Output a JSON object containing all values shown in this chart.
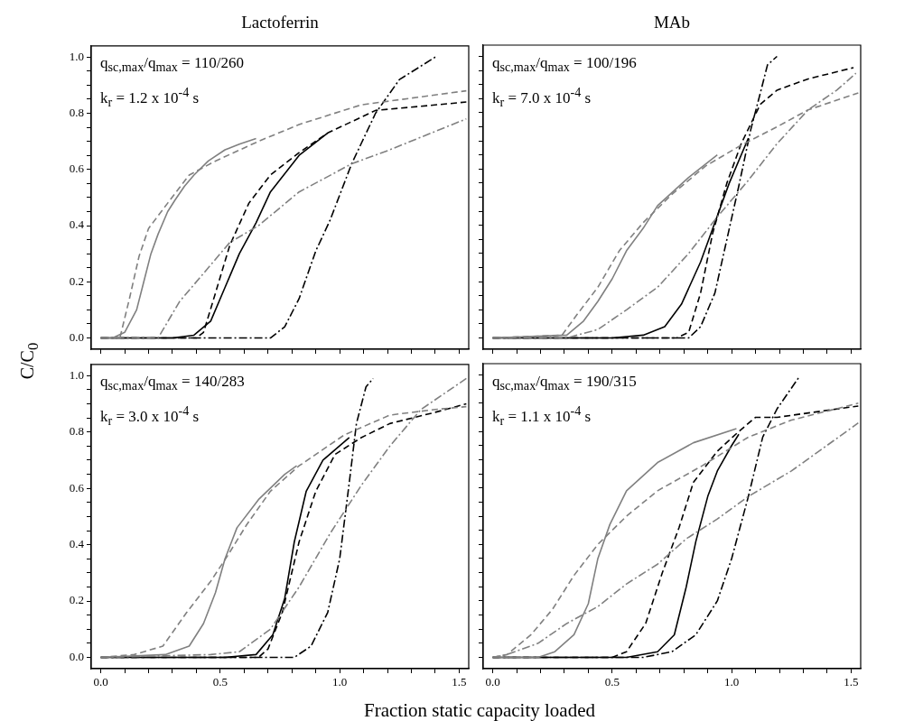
{
  "chart_data": [
    {
      "type": "line",
      "title": "Lactoferrin",
      "ylabel": "C/C$_{0}$",
      "annotations": [
        "q$_{sc,max}$/q$_{max}$ = 110/260",
        "k$_{r}$ = 1.2 x 10$^{-4}$ s"
      ],
      "xlim": [
        -0.04,
        1.54
      ],
      "ylim": [
        -0.04,
        1.04
      ],
      "tick_labels": "y",
      "xticks": [
        {
          "value": 0,
          "label": null
        },
        {
          "value": 0.1,
          "label": null
        },
        {
          "value": 0.2,
          "label": null
        },
        {
          "value": 0.3,
          "label": null
        },
        {
          "value": 0.4,
          "label": null
        },
        {
          "value": 0.5,
          "label": null
        },
        {
          "value": 0.6,
          "label": null
        },
        {
          "value": 0.7,
          "label": null
        },
        {
          "value": 0.8,
          "label": null
        },
        {
          "value": 0.9,
          "label": null
        },
        {
          "value": 1,
          "label": null
        },
        {
          "value": 1.1,
          "label": null
        },
        {
          "value": 1.2,
          "label": null
        },
        {
          "value": 1.3,
          "label": null
        },
        {
          "value": 1.4,
          "label": null
        },
        {
          "value": 1.5,
          "label": null
        }
      ],
      "yticks": [
        {
          "value": 0,
          "label": "0.0"
        },
        {
          "value": 0.05,
          "label": null
        },
        {
          "value": 0.1,
          "label": null
        },
        {
          "value": 0.15,
          "label": null
        },
        {
          "value": 0.2,
          "label": "0.2"
        },
        {
          "value": 0.25,
          "label": null
        },
        {
          "value": 0.3,
          "label": null
        },
        {
          "value": 0.35,
          "label": null
        },
        {
          "value": 0.4,
          "label": "0.4"
        },
        {
          "value": 0.45,
          "label": null
        },
        {
          "value": 0.5,
          "label": null
        },
        {
          "value": 0.55,
          "label": null
        },
        {
          "value": 0.6,
          "label": "0.6"
        },
        {
          "value": 0.65,
          "label": null
        },
        {
          "value": 0.7,
          "label": null
        },
        {
          "value": 0.75,
          "label": null
        },
        {
          "value": 0.8,
          "label": "0.8"
        },
        {
          "value": 0.85,
          "label": null
        },
        {
          "value": 0.9,
          "label": null
        },
        {
          "value": 0.95,
          "label": null
        },
        {
          "value": 1,
          "label": "1.0"
        }
      ],
      "series": [
        {
          "color": "#808080",
          "line_style": "solid",
          "x": [
            0,
            0.05,
            0.1,
            0.15,
            0.18,
            0.21,
            0.24,
            0.28,
            0.31,
            0.35,
            0.39,
            0.45,
            0.52,
            0.58,
            0.65
          ],
          "values": [
            0,
            0,
            0.02,
            0.1,
            0.2,
            0.3,
            0.37,
            0.45,
            0.49,
            0.54,
            0.58,
            0.63,
            0.67,
            0.69,
            0.71
          ]
        },
        {
          "color": "#808080",
          "line_style": "dashed",
          "x": [
            0,
            0.08,
            0.12,
            0.16,
            0.2,
            0.28,
            0.37,
            0.48,
            0.66,
            0.83,
            1.09,
            1.53
          ],
          "values": [
            0,
            0,
            0.14,
            0.29,
            0.39,
            0.48,
            0.58,
            0.63,
            0.7,
            0.76,
            0.83,
            0.88
          ]
        },
        {
          "color": "#808080",
          "line_style": "dashdot",
          "x": [
            0,
            0.24,
            0.33,
            0.43,
            0.54,
            0.66,
            0.83,
            1.05,
            1.21,
            1.53
          ],
          "values": [
            0,
            0,
            0.13,
            0.23,
            0.34,
            0.4,
            0.52,
            0.62,
            0.67,
            0.78
          ]
        },
        {
          "color": "#000000",
          "line_style": "solid",
          "x": [
            0,
            0.3,
            0.39,
            0.46,
            0.52,
            0.58,
            0.65,
            0.71,
            0.83,
            0.95
          ],
          "values": [
            0,
            0,
            0.01,
            0.06,
            0.18,
            0.3,
            0.41,
            0.52,
            0.65,
            0.73
          ]
        },
        {
          "color": "#000000",
          "line_style": "dashed",
          "x": [
            0,
            0.4,
            0.43,
            0.48,
            0.54,
            0.62,
            0.71,
            0.83,
            0.95,
            1.15,
            1.53
          ],
          "values": [
            0,
            0,
            0.02,
            0.16,
            0.33,
            0.48,
            0.58,
            0.66,
            0.73,
            0.81,
            0.84
          ]
        },
        {
          "color": "#000000",
          "line_style": "dashdot",
          "x": [
            0,
            0.71,
            0.77,
            0.83,
            0.9,
            0.96,
            1.05,
            1.15,
            1.25,
            1.4
          ],
          "values": [
            0,
            0,
            0.04,
            0.14,
            0.31,
            0.42,
            0.62,
            0.8,
            0.92,
            1
          ]
        }
      ]
    },
    {
      "type": "line",
      "title": "MAb",
      "annotations": [
        "q$_{sc,max}$/q$_{max}$ = 100/196",
        "k$_{r}$ = 7.0 x 10$^{-4}$ s"
      ],
      "xlim": [
        -0.04,
        1.54
      ],
      "ylim": [
        -0.04,
        1.04
      ],
      "tick_labels": false,
      "xticks": [
        {
          "value": 0,
          "label": null
        },
        {
          "value": 0.1,
          "label": null
        },
        {
          "value": 0.2,
          "label": null
        },
        {
          "value": 0.3,
          "label": null
        },
        {
          "value": 0.4,
          "label": null
        },
        {
          "value": 0.5,
          "label": null
        },
        {
          "value": 0.6,
          "label": null
        },
        {
          "value": 0.7,
          "label": null
        },
        {
          "value": 0.8,
          "label": null
        },
        {
          "value": 0.9,
          "label": null
        },
        {
          "value": 1,
          "label": null
        },
        {
          "value": 1.1,
          "label": null
        },
        {
          "value": 1.2,
          "label": null
        },
        {
          "value": 1.3,
          "label": null
        },
        {
          "value": 1.4,
          "label": null
        },
        {
          "value": 1.5,
          "label": null
        }
      ],
      "yticks": [
        {
          "value": 0,
          "label": null
        },
        {
          "value": 0.05,
          "label": null
        },
        {
          "value": 0.1,
          "label": null
        },
        {
          "value": 0.15,
          "label": null
        },
        {
          "value": 0.2,
          "label": null
        },
        {
          "value": 0.25,
          "label": null
        },
        {
          "value": 0.3,
          "label": null
        },
        {
          "value": 0.35,
          "label": null
        },
        {
          "value": 0.4,
          "label": null
        },
        {
          "value": 0.45,
          "label": null
        },
        {
          "value": 0.5,
          "label": null
        },
        {
          "value": 0.55,
          "label": null
        },
        {
          "value": 0.6,
          "label": null
        },
        {
          "value": 0.65,
          "label": null
        },
        {
          "value": 0.7,
          "label": null
        },
        {
          "value": 0.75,
          "label": null
        },
        {
          "value": 0.8,
          "label": null
        },
        {
          "value": 0.85,
          "label": null
        },
        {
          "value": 0.9,
          "label": null
        },
        {
          "value": 0.95,
          "label": null
        },
        {
          "value": 1,
          "label": null
        }
      ],
      "series": [
        {
          "color": "#808080",
          "line_style": "solid",
          "x": [
            0,
            0.31,
            0.38,
            0.44,
            0.5,
            0.56,
            0.63,
            0.69,
            0.82,
            0.94
          ],
          "values": [
            0,
            0.01,
            0.06,
            0.13,
            0.21,
            0.31,
            0.39,
            0.47,
            0.57,
            0.65
          ]
        },
        {
          "color": "#808080",
          "line_style": "dashed",
          "x": [
            0,
            0.29,
            0.35,
            0.44,
            0.53,
            0.63,
            0.75,
            0.89,
            1.03,
            1.19,
            1.32,
            1.53
          ],
          "values": [
            0,
            0.01,
            0.08,
            0.18,
            0.31,
            0.41,
            0.51,
            0.61,
            0.68,
            0.75,
            0.81,
            0.87
          ]
        },
        {
          "color": "#808080",
          "line_style": "dashdot",
          "x": [
            0,
            0.31,
            0.44,
            0.56,
            0.69,
            0.82,
            0.94,
            1.07,
            1.19,
            1.32,
            1.44,
            1.52
          ],
          "values": [
            0,
            0,
            0.03,
            0.1,
            0.18,
            0.3,
            0.43,
            0.56,
            0.69,
            0.81,
            0.88,
            0.94
          ]
        },
        {
          "color": "#000000",
          "line_style": "solid",
          "x": [
            0,
            0.5,
            0.63,
            0.72,
            0.79,
            0.87,
            0.93,
            0.99,
            1.07
          ],
          "values": [
            0,
            0,
            0.01,
            0.04,
            0.12,
            0.27,
            0.41,
            0.55,
            0.71
          ]
        },
        {
          "color": "#000000",
          "line_style": "dashed",
          "x": [
            0,
            0.77,
            0.82,
            0.87,
            0.92,
            0.98,
            1.04,
            1.12,
            1.19,
            1.32,
            1.51
          ],
          "values": [
            0,
            0,
            0.02,
            0.16,
            0.37,
            0.55,
            0.69,
            0.83,
            0.88,
            0.92,
            0.96
          ]
        },
        {
          "color": "#000000",
          "line_style": "dashdot",
          "x": [
            0,
            0.82,
            0.87,
            0.93,
            0.98,
            1.03,
            1.08,
            1.12,
            1.15,
            1.19
          ],
          "values": [
            0,
            0,
            0.04,
            0.16,
            0.35,
            0.54,
            0.74,
            0.87,
            0.97,
            1
          ]
        }
      ]
    },
    {
      "type": "line",
      "xlabel": "Fraction static capacity loaded",
      "annotations": [
        "q$_{sc,max}$/q$_{max}$ = 140/283",
        "k$_{r}$ = 3.0 x 10$^{-4}$ s"
      ],
      "xlim": [
        -0.04,
        1.54
      ],
      "ylim": [
        -0.04,
        1.04
      ],
      "xticks": [
        {
          "value": 0,
          "label": "0.0"
        },
        {
          "value": 0.1,
          "label": null
        },
        {
          "value": 0.2,
          "label": null
        },
        {
          "value": 0.3,
          "label": null
        },
        {
          "value": 0.4,
          "label": null
        },
        {
          "value": 0.5,
          "label": "0.5"
        },
        {
          "value": 0.6,
          "label": null
        },
        {
          "value": 0.7,
          "label": null
        },
        {
          "value": 0.8,
          "label": null
        },
        {
          "value": 0.9,
          "label": null
        },
        {
          "value": 1,
          "label": "1.0"
        },
        {
          "value": 1.1,
          "label": null
        },
        {
          "value": 1.2,
          "label": null
        },
        {
          "value": 1.3,
          "label": null
        },
        {
          "value": 1.4,
          "label": null
        },
        {
          "value": 1.5,
          "label": "1.5"
        }
      ],
      "yticks": [
        {
          "value": 0,
          "label": "0.0"
        },
        {
          "value": 0.05,
          "label": null
        },
        {
          "value": 0.1,
          "label": null
        },
        {
          "value": 0.15,
          "label": null
        },
        {
          "value": 0.2,
          "label": "0.2"
        },
        {
          "value": 0.25,
          "label": null
        },
        {
          "value": 0.3,
          "label": null
        },
        {
          "value": 0.35,
          "label": null
        },
        {
          "value": 0.4,
          "label": "0.4"
        },
        {
          "value": 0.45,
          "label": null
        },
        {
          "value": 0.5,
          "label": null
        },
        {
          "value": 0.55,
          "label": null
        },
        {
          "value": 0.6,
          "label": "0.6"
        },
        {
          "value": 0.65,
          "label": null
        },
        {
          "value": 0.7,
          "label": null
        },
        {
          "value": 0.75,
          "label": null
        },
        {
          "value": 0.8,
          "label": "0.8"
        },
        {
          "value": 0.85,
          "label": null
        },
        {
          "value": 0.9,
          "label": null
        },
        {
          "value": 0.95,
          "label": null
        },
        {
          "value": 1,
          "label": "1.0"
        }
      ],
      "series": [
        {
          "color": "#808080",
          "line_style": "solid",
          "x": [
            0,
            0.27,
            0.37,
            0.43,
            0.48,
            0.52,
            0.57,
            0.66,
            0.77,
            0.82
          ],
          "values": [
            0,
            0.01,
            0.04,
            0.12,
            0.23,
            0.35,
            0.46,
            0.56,
            0.65,
            0.68
          ]
        },
        {
          "color": "#808080",
          "line_style": "dashed",
          "x": [
            0,
            0.14,
            0.26,
            0.36,
            0.46,
            0.53,
            0.61,
            0.71,
            0.83,
            1.02,
            1.21,
            1.4,
            1.53
          ],
          "values": [
            0,
            0.01,
            0.04,
            0.16,
            0.27,
            0.36,
            0.47,
            0.59,
            0.68,
            0.79,
            0.86,
            0.88,
            0.89
          ]
        },
        {
          "color": "#808080",
          "line_style": "dashdot",
          "x": [
            0,
            0.46,
            0.58,
            0.71,
            0.83,
            0.96,
            1.09,
            1.21,
            1.34,
            1.53
          ],
          "values": [
            0,
            0.01,
            0.02,
            0.1,
            0.25,
            0.44,
            0.61,
            0.75,
            0.88,
            0.99
          ]
        },
        {
          "color": "#000000",
          "line_style": "solid",
          "x": [
            0,
            0.52,
            0.65,
            0.72,
            0.77,
            0.81,
            0.86,
            0.93,
            1.04
          ],
          "values": [
            0,
            0,
            0.01,
            0.08,
            0.21,
            0.41,
            0.59,
            0.7,
            0.78
          ]
        },
        {
          "color": "#000000",
          "line_style": "dashed",
          "x": [
            0,
            0.66,
            0.7,
            0.76,
            0.83,
            0.9,
            0.98,
            1.09,
            1.21,
            1.4,
            1.53
          ],
          "values": [
            0,
            0,
            0.03,
            0.16,
            0.41,
            0.59,
            0.72,
            0.78,
            0.83,
            0.87,
            0.9
          ]
        },
        {
          "color": "#000000",
          "line_style": "dashdot",
          "x": [
            0,
            0.81,
            0.88,
            0.95,
            1,
            1.04,
            1.07,
            1.11,
            1.14
          ],
          "values": [
            0,
            0,
            0.04,
            0.16,
            0.35,
            0.62,
            0.83,
            0.96,
            0.99
          ]
        }
      ]
    },
    {
      "type": "line",
      "annotations": [
        "q$_{sc,max}$/q$_{max}$ = 190/315",
        "k$_{r}$ = 1.1 x 10$^{-4}$ s"
      ],
      "xlim": [
        -0.04,
        1.54
      ],
      "ylim": [
        -0.04,
        1.04
      ],
      "tick_labels": "x",
      "xticks": [
        {
          "value": 0,
          "label": "0.0"
        },
        {
          "value": 0.1,
          "label": null
        },
        {
          "value": 0.2,
          "label": null
        },
        {
          "value": 0.3,
          "label": null
        },
        {
          "value": 0.4,
          "label": null
        },
        {
          "value": 0.5,
          "label": "0.5"
        },
        {
          "value": 0.6,
          "label": null
        },
        {
          "value": 0.7,
          "label": null
        },
        {
          "value": 0.8,
          "label": null
        },
        {
          "value": 0.9,
          "label": null
        },
        {
          "value": 1,
          "label": "1.0"
        },
        {
          "value": 1.1,
          "label": null
        },
        {
          "value": 1.2,
          "label": null
        },
        {
          "value": 1.3,
          "label": null
        },
        {
          "value": 1.4,
          "label": null
        },
        {
          "value": 1.5,
          "label": "1.5"
        }
      ],
      "yticks": [
        {
          "value": 0,
          "label": null
        },
        {
          "value": 0.05,
          "label": null
        },
        {
          "value": 0.1,
          "label": null
        },
        {
          "value": 0.15,
          "label": null
        },
        {
          "value": 0.2,
          "label": null
        },
        {
          "value": 0.25,
          "label": null
        },
        {
          "value": 0.3,
          "label": null
        },
        {
          "value": 0.35,
          "label": null
        },
        {
          "value": 0.4,
          "label": null
        },
        {
          "value": 0.45,
          "label": null
        },
        {
          "value": 0.5,
          "label": null
        },
        {
          "value": 0.55,
          "label": null
        },
        {
          "value": 0.6,
          "label": null
        },
        {
          "value": 0.65,
          "label": null
        },
        {
          "value": 0.7,
          "label": null
        },
        {
          "value": 0.75,
          "label": null
        },
        {
          "value": 0.8,
          "label": null
        },
        {
          "value": 0.85,
          "label": null
        },
        {
          "value": 0.9,
          "label": null
        },
        {
          "value": 0.95,
          "label": null
        },
        {
          "value": 1,
          "label": null
        }
      ],
      "series": [
        {
          "color": "#808080",
          "line_style": "solid",
          "x": [
            0,
            0.19,
            0.26,
            0.34,
            0.4,
            0.44,
            0.49,
            0.56,
            0.69,
            0.84,
            1.02
          ],
          "values": [
            0,
            0,
            0.02,
            0.08,
            0.19,
            0.35,
            0.47,
            0.59,
            0.69,
            0.76,
            0.81
          ]
        },
        {
          "color": "#808080",
          "line_style": "dashed",
          "x": [
            0,
            0.06,
            0.16,
            0.25,
            0.34,
            0.44,
            0.56,
            0.69,
            0.88,
            1.07,
            1.25,
            1.53
          ],
          "values": [
            0,
            0.01,
            0.08,
            0.17,
            0.29,
            0.4,
            0.5,
            0.59,
            0.68,
            0.78,
            0.84,
            0.9
          ]
        },
        {
          "color": "#808080",
          "line_style": "dashdot",
          "x": [
            0,
            0.06,
            0.19,
            0.31,
            0.44,
            0.56,
            0.69,
            0.81,
            0.94,
            1.07,
            1.25,
            1.53
          ],
          "values": [
            0,
            0.01,
            0.05,
            0.12,
            0.18,
            0.26,
            0.33,
            0.42,
            0.49,
            0.57,
            0.66,
            0.83
          ]
        },
        {
          "color": "#000000",
          "line_style": "solid",
          "x": [
            0,
            0.56,
            0.69,
            0.76,
            0.81,
            0.85,
            0.9,
            0.94,
            1,
            1.03
          ],
          "values": [
            0,
            0,
            0.02,
            0.08,
            0.25,
            0.41,
            0.57,
            0.66,
            0.75,
            0.79
          ]
        },
        {
          "color": "#000000",
          "line_style": "dashed",
          "x": [
            0,
            0.5,
            0.56,
            0.64,
            0.71,
            0.78,
            0.84,
            0.94,
            1.03,
            1.1,
            1.19,
            1.53
          ],
          "values": [
            0,
            0,
            0.02,
            0.12,
            0.3,
            0.46,
            0.62,
            0.73,
            0.8,
            0.85,
            0.85,
            0.89
          ]
        },
        {
          "color": "#000000",
          "line_style": "dashdot",
          "x": [
            0,
            0.63,
            0.75,
            0.85,
            0.94,
            1,
            1.07,
            1.13,
            1.19,
            1.28
          ],
          "values": [
            0,
            0,
            0.02,
            0.08,
            0.2,
            0.35,
            0.57,
            0.78,
            0.88,
            0.99
          ]
        }
      ]
    }
  ]
}
